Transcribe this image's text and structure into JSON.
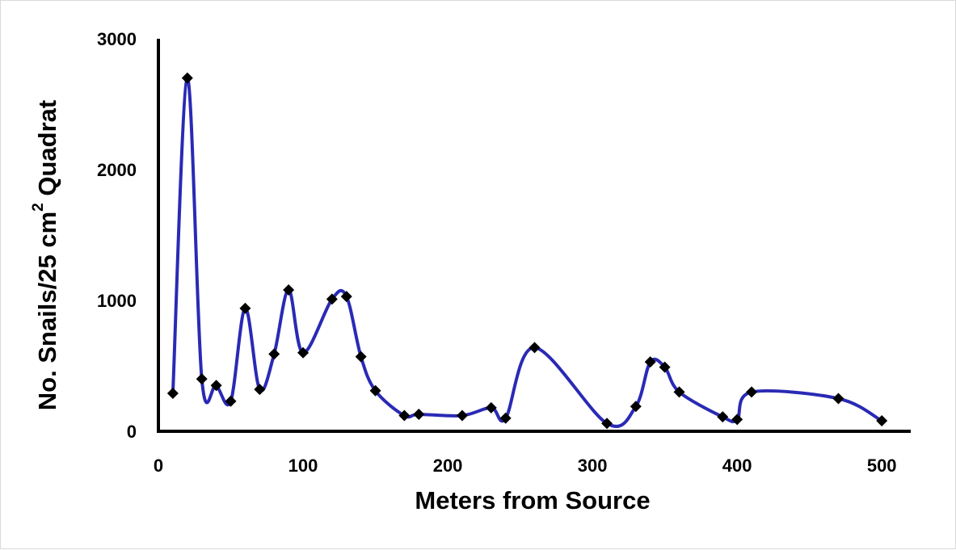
{
  "chart_data": {
    "type": "line",
    "title": "",
    "xlabel": "Meters from Source",
    "ylabel": {
      "prefix": "No. Snails/25 cm",
      "superscript": "2",
      "suffix": " Quadrat"
    },
    "xlim": [
      0,
      520
    ],
    "ylim": [
      0,
      3000
    ],
    "xticks": [
      0,
      100,
      200,
      300,
      400,
      500
    ],
    "yticks": [
      0,
      1000,
      2000,
      3000
    ],
    "grid": false,
    "legend": "none",
    "line_color": "#2a2ab5",
    "marker_color": "#000000",
    "marker": "diamond",
    "smooth": true,
    "series": [
      {
        "x": [
          10,
          20,
          30,
          40,
          50,
          60,
          70,
          80,
          90,
          100,
          120,
          130,
          140,
          150,
          170,
          180,
          210,
          230,
          240,
          260,
          310,
          330,
          340,
          350,
          360,
          390,
          400,
          410,
          470,
          500
        ],
        "values": [
          290,
          2700,
          400,
          350,
          230,
          940,
          320,
          590,
          1080,
          600,
          1010,
          1030,
          570,
          310,
          120,
          130,
          120,
          180,
          100,
          640,
          60,
          190,
          530,
          490,
          300,
          110,
          90,
          300,
          250,
          80
        ]
      }
    ]
  }
}
